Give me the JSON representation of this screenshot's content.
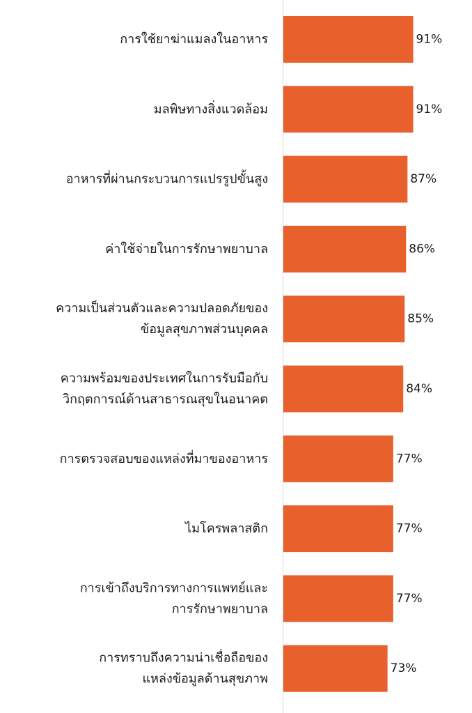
{
  "chart_data": {
    "type": "bar",
    "orientation": "horizontal",
    "bar_color": "#E8602C",
    "axis_line_color": "#d9d9d9",
    "value_suffix": "%",
    "xlim": [
      0,
      100
    ],
    "categories": [
      [
        "การใช้ยาฆ่าแมลงในอาหาร"
      ],
      [
        "มลพิษทางสิ่งแวดล้อม"
      ],
      [
        "อาหารที่ผ่านกระบวนการแปรรูปขั้นสูง"
      ],
      [
        "ค่าใช้จ่ายในการรักษาพยาบาล"
      ],
      [
        "ความเป็นส่วนตัวและความปลอดภัยของ",
        "ข้อมูลสุขภาพส่วนบุคคล"
      ],
      [
        "ความพร้อมของประเทศในการรับมือกับ",
        "วิกฤตการณ์ด้านสาธารณสุขในอนาคต"
      ],
      [
        "การตรวจสอบของแหล่งที่มาของอาหาร"
      ],
      [
        "ไมโครพลาสติก"
      ],
      [
        "การเข้าถึงบริการทางการแพทย์และ",
        "การรักษาพยาบาล"
      ],
      [
        "การทราบถึงความน่าเชื่อถือของ",
        "แหล่งข้อมูลด้านสุขภาพ"
      ]
    ],
    "values": [
      91,
      91,
      87,
      86,
      85,
      84,
      77,
      77,
      77,
      73
    ]
  }
}
